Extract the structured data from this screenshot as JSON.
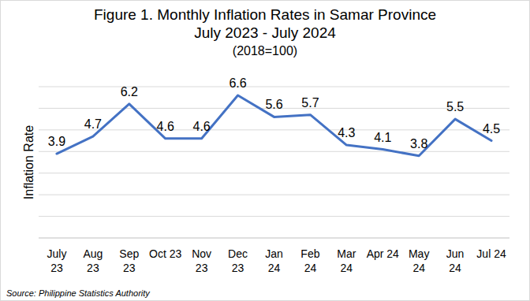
{
  "chart_data": {
    "type": "line",
    "title": "Figure 1. Monthly Inflation Rates in Samar Province",
    "subtitle": "July 2023 - July 2024",
    "annotations": [
      "(2018=100)"
    ],
    "y_label": "Inflation Rate",
    "source": "Source: Philippine Statistics Authority",
    "categories": [
      "July\n23",
      "Aug\n23",
      "Sep\n23",
      "Oct 23",
      "Nov\n23",
      "Dec\n23",
      "Jan\n24",
      "Feb\n24",
      "Mar\n24",
      "Apr 24",
      "May\n24",
      "Jun\n24",
      "Jul 24"
    ],
    "values": [
      3.9,
      4.7,
      6.2,
      4.6,
      4.6,
      6.6,
      5.6,
      5.7,
      4.3,
      4.1,
      3.8,
      5.5,
      4.5
    ],
    "color": "#4472c4",
    "marker": "none",
    "line_style": "solid",
    "ylim": [
      0,
      7
    ],
    "yticks": [
      0,
      1,
      2,
      3,
      4,
      5,
      6,
      7
    ],
    "grid": true,
    "data_labels": true,
    "tick_labels": "x"
  }
}
